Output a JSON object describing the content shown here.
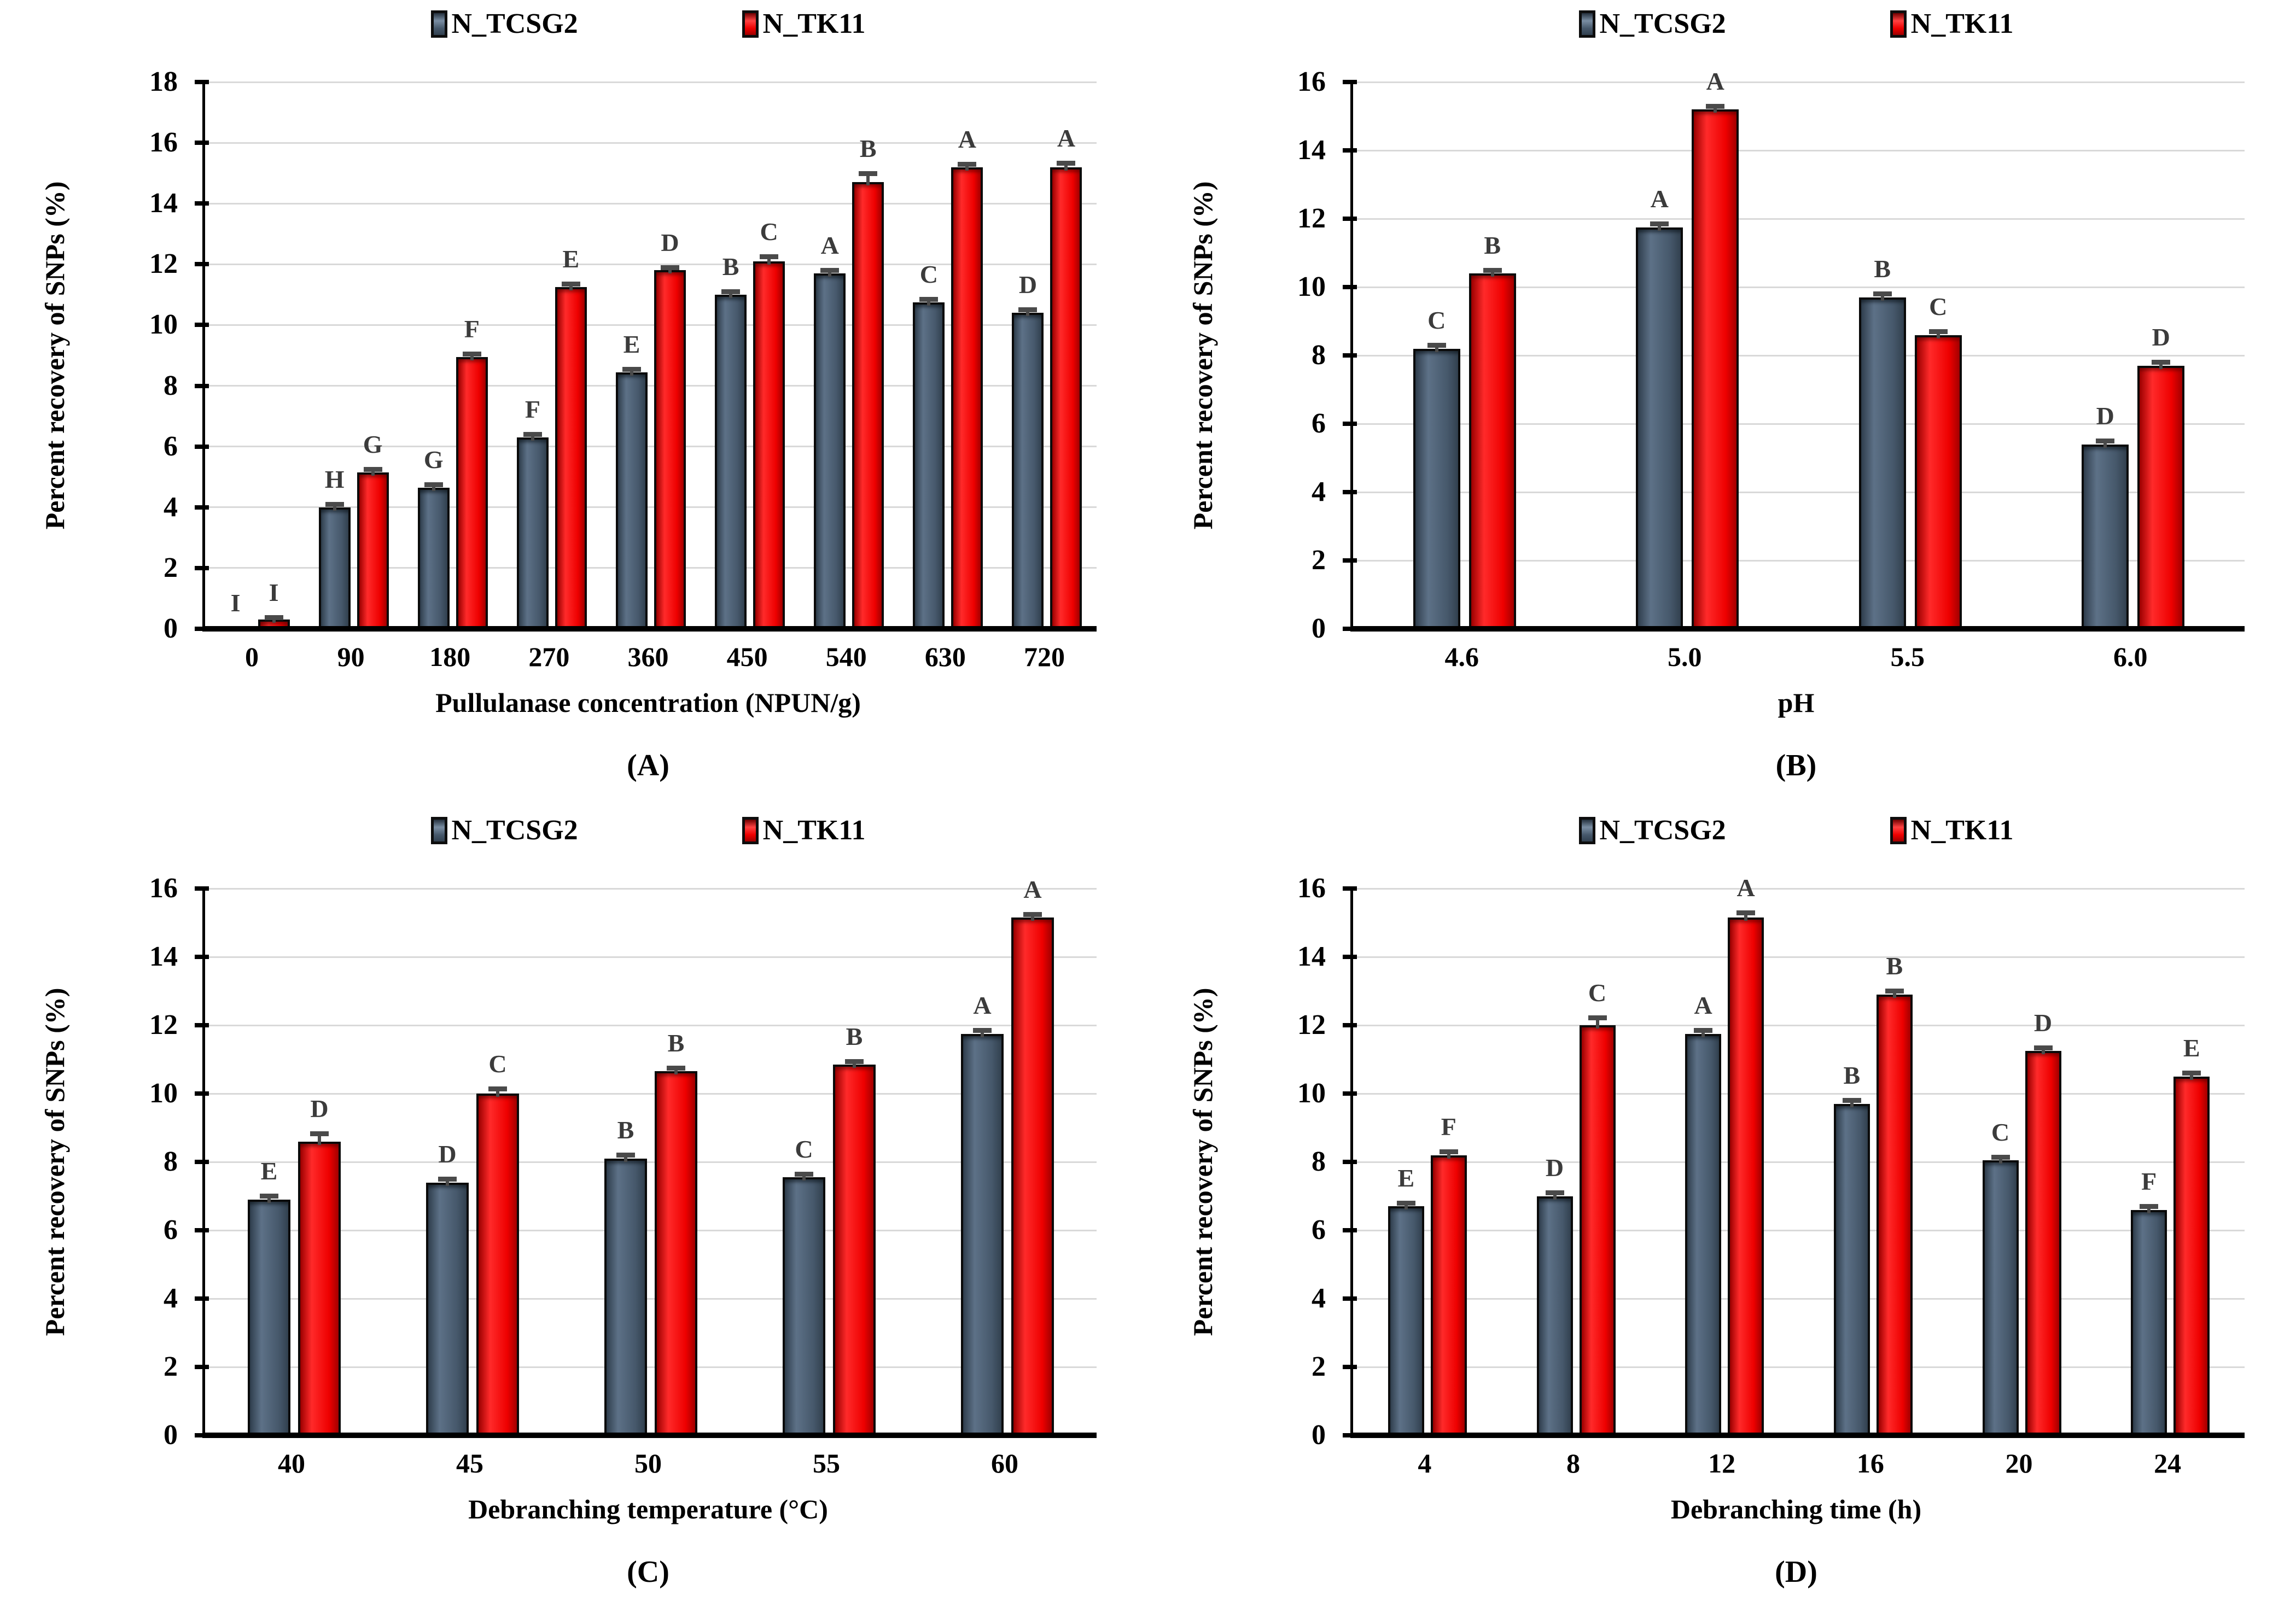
{
  "figure": {
    "ylabel": "Percent recovery of SNPs (%)",
    "legend_labels": [
      "N_TCSG2",
      "N_TK11"
    ],
    "colors": {
      "series_dark": "#46586b",
      "series_red": "#ee0000",
      "letter": "#3b3b3b",
      "grid": "#d9d9d9",
      "error": "#4a4a4a",
      "axis": "#000000",
      "background": "#ffffff"
    }
  },
  "chart_data": [
    {
      "id": "A",
      "type": "bar",
      "caption": "(A)",
      "xlabel": "Pullulanase concentration (NPUN/g)",
      "ylabel": "Percent recovery of SNPs (%)",
      "ylim": [
        0,
        18
      ],
      "yticks": [
        0,
        2,
        4,
        6,
        8,
        10,
        12,
        14,
        16,
        18
      ],
      "grid": true,
      "legend_position": "top-center",
      "categories": [
        "0",
        "90",
        "180",
        "270",
        "360",
        "450",
        "540",
        "630",
        "720"
      ],
      "series": [
        {
          "name": "N_TCSG2",
          "color": "#46586b",
          "values": [
            0,
            4.0,
            4.65,
            6.3,
            8.45,
            11.0,
            11.7,
            10.75,
            10.4
          ],
          "letters": [
            "I",
            "H",
            "G",
            "F",
            "E",
            "B",
            "A",
            "C",
            "D"
          ],
          "errors": [
            0,
            0.07,
            0.07,
            0.07,
            0.07,
            0.07,
            0.07,
            0.07,
            0.07
          ]
        },
        {
          "name": "N_TK11",
          "color": "#ee0000",
          "values": [
            0.3,
            5.15,
            8.95,
            11.25,
            11.8,
            12.1,
            14.7,
            15.2,
            15.2
          ],
          "letters": [
            "I",
            "G",
            "F",
            "E",
            "D",
            "C",
            "B",
            "A",
            "A"
          ],
          "errors": [
            0.05,
            0.07,
            0.07,
            0.07,
            0.07,
            0.12,
            0.25,
            0.07,
            0.1
          ]
        }
      ]
    },
    {
      "id": "B",
      "type": "bar",
      "caption": "(B)",
      "xlabel": "pH",
      "ylabel": "Percent recovery of SNPs (%)",
      "ylim": [
        0,
        16
      ],
      "yticks": [
        0,
        2,
        4,
        6,
        8,
        10,
        12,
        14,
        16
      ],
      "grid": true,
      "legend_position": "top-center",
      "categories": [
        "4.6",
        "5.0",
        "5.5",
        "6.0"
      ],
      "series": [
        {
          "name": "N_TCSG2",
          "color": "#46586b",
          "values": [
            8.2,
            11.75,
            9.7,
            5.4
          ],
          "letters": [
            "C",
            "A",
            "B",
            "D"
          ],
          "errors": [
            0.07,
            0.07,
            0.07,
            0.07
          ]
        },
        {
          "name": "N_TK11",
          "color": "#ee0000",
          "values": [
            10.4,
            15.2,
            8.6,
            7.7
          ],
          "letters": [
            "B",
            "A",
            "C",
            "D"
          ],
          "errors": [
            0.07,
            0.07,
            0.07,
            0.07
          ]
        }
      ]
    },
    {
      "id": "C",
      "type": "bar",
      "caption": "(C)",
      "xlabel": "Debranching temperature (°C)",
      "ylabel": "Percent recovery of SNPs (%)",
      "ylim": [
        0,
        16
      ],
      "yticks": [
        0,
        2,
        4,
        6,
        8,
        10,
        12,
        14,
        16
      ],
      "grid": true,
      "legend_position": "top-center",
      "categories": [
        "40",
        "45",
        "50",
        "55",
        "60"
      ],
      "series": [
        {
          "name": "N_TCSG2",
          "color": "#46586b",
          "values": [
            6.9,
            7.4,
            8.1,
            7.55,
            11.75
          ],
          "letters": [
            "E",
            "D",
            "B",
            "C",
            "A"
          ],
          "errors": [
            0.07,
            0.07,
            0.07,
            0.07,
            0.07
          ]
        },
        {
          "name": "N_TK11",
          "color": "#ee0000",
          "values": [
            8.6,
            10.0,
            10.65,
            10.85,
            15.15
          ],
          "letters": [
            "D",
            "C",
            "B",
            "B",
            "A"
          ],
          "errors": [
            0.2,
            0.12,
            0.07,
            0.07,
            0.07
          ]
        }
      ]
    },
    {
      "id": "D",
      "type": "bar",
      "caption": "(D)",
      "xlabel": "Debranching time (h)",
      "ylabel": "Percent recovery of SNPs (%)",
      "ylim": [
        0,
        16
      ],
      "yticks": [
        0,
        2,
        4,
        6,
        8,
        10,
        12,
        14,
        16
      ],
      "grid": true,
      "legend_position": "top-center",
      "categories": [
        "4",
        "8",
        "12",
        "16",
        "20",
        "24"
      ],
      "series": [
        {
          "name": "N_TCSG2",
          "color": "#46586b",
          "values": [
            6.7,
            7.0,
            11.75,
            9.7,
            8.05,
            6.6
          ],
          "letters": [
            "E",
            "D",
            "A",
            "B",
            "C",
            "F"
          ],
          "errors": [
            0.07,
            0.07,
            0.07,
            0.07,
            0.07,
            0.07
          ]
        },
        {
          "name": "N_TK11",
          "color": "#ee0000",
          "values": [
            8.2,
            12.0,
            15.15,
            12.9,
            11.25,
            10.5
          ],
          "letters": [
            "F",
            "C",
            "A",
            "B",
            "D",
            "E"
          ],
          "errors": [
            0.07,
            0.2,
            0.12,
            0.07,
            0.07,
            0.07
          ]
        }
      ]
    }
  ]
}
